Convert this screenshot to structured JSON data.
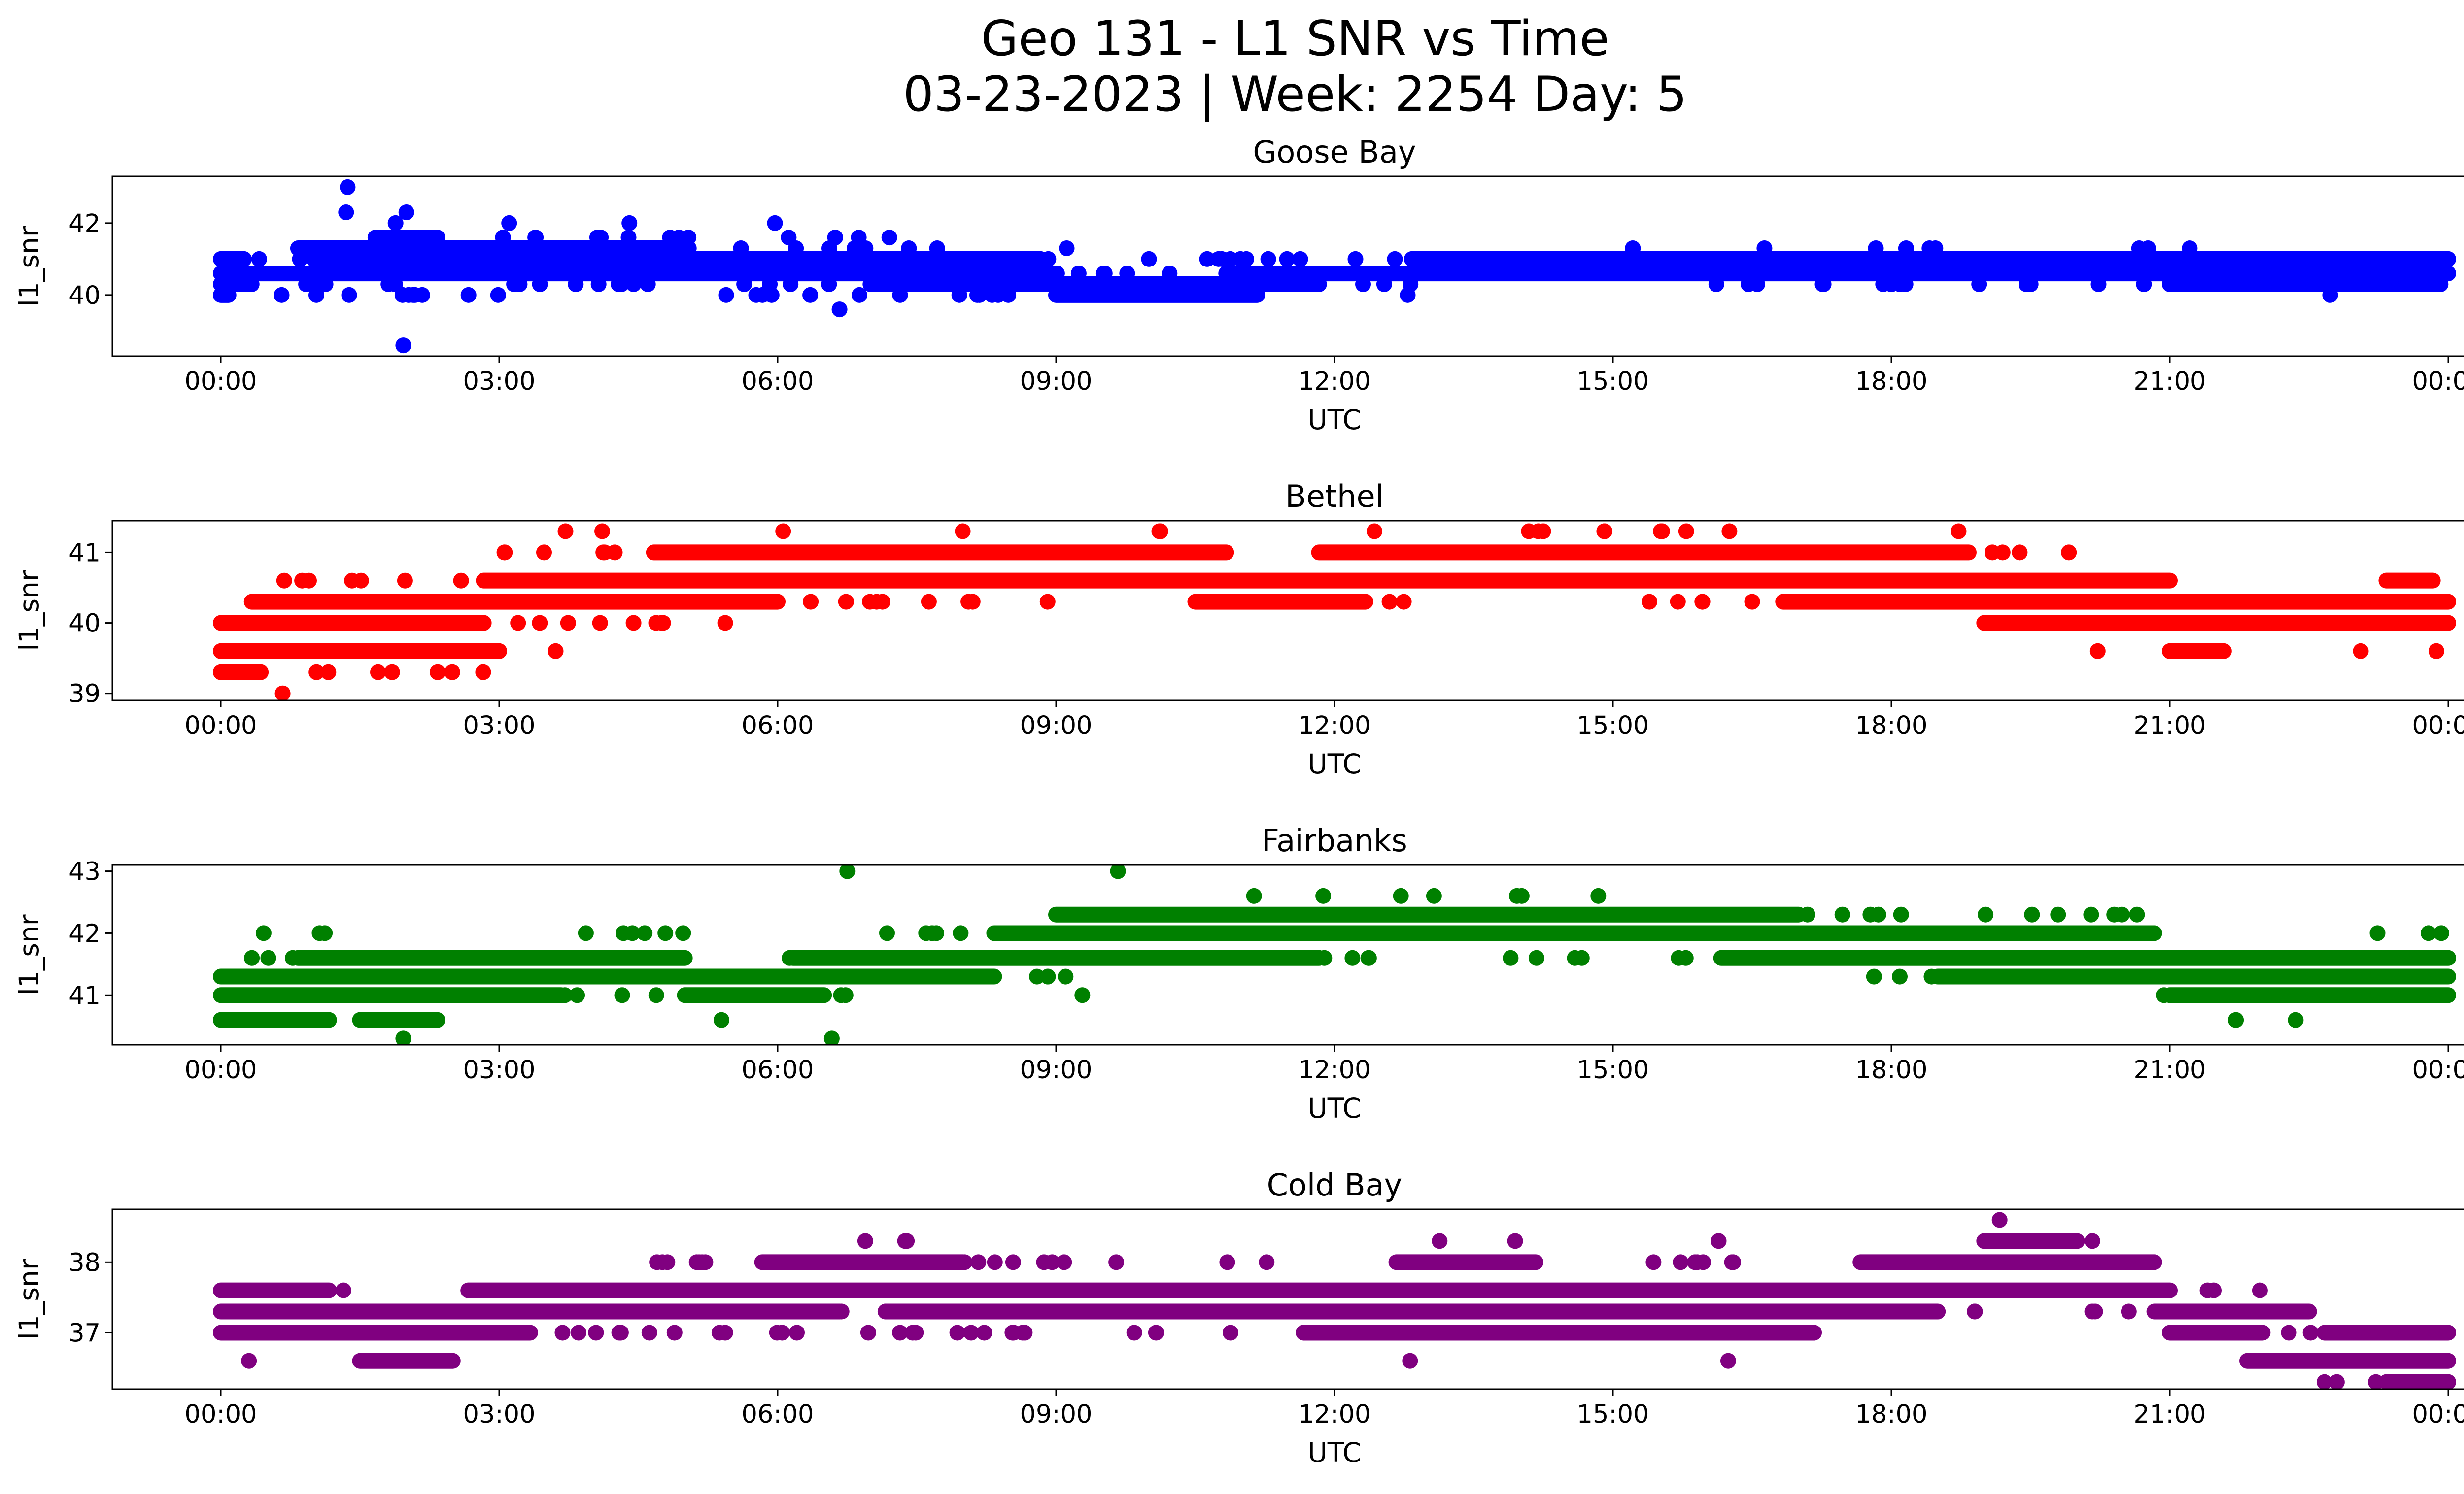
{
  "figure": {
    "title_line1": "Geo 131 - L1 SNR vs Time",
    "title_line2": "03-23-2023 | Week: 2254 Day: 5"
  },
  "chart_data": [
    {
      "type": "scatter",
      "title": "Goose Bay",
      "xlabel": "UTC",
      "ylabel": "l1_snr",
      "color": "#0000ff",
      "xlim": [
        "2023-03-22T23:24",
        "2023-03-24T00:36"
      ],
      "ylim": [
        38.3,
        43.3
      ],
      "xticks": [
        "00:00",
        "03:00",
        "06:00",
        "09:00",
        "12:00",
        "15:00",
        "18:00",
        "21:00",
        "00:00"
      ],
      "yticks": [
        40,
        42
      ],
      "levels": [
        {
          "y": 40.0,
          "segments": [
            [
              "00:00",
              "00:05"
            ],
            [
              "09:00",
              "11:10"
            ]
          ],
          "sparse": [
            [
              "00:10",
              "03:00"
            ],
            [
              "05:00",
              "09:00"
            ],
            [
              "12:40",
              "12:50"
            ],
            [
              "22:40",
              "22:50"
            ]
          ]
        },
        {
          "y": 40.3,
          "segments": [
            [
              "00:00",
              "00:20"
            ],
            [
              "07:00",
              "11:50"
            ],
            [
              "21:00",
              "23:55"
            ]
          ],
          "sparse": [
            [
              "00:30",
              "02:00"
            ],
            [
              "02:30",
              "06:40"
            ],
            [
              "12:00",
              "13:00"
            ],
            [
              "16:00",
              "21:00"
            ]
          ]
        },
        {
          "y": 40.6,
          "segments": [
            [
              "00:00",
              "09:00"
            ],
            [
              "10:50",
              "24:00"
            ]
          ],
          "sparse": [
            [
              "09:00",
              "10:50"
            ]
          ]
        },
        {
          "y": 41.0,
          "segments": [
            [
              "00:00",
              "00:15"
            ],
            [
              "01:00",
              "08:50"
            ],
            [
              "12:50",
              "24:00"
            ]
          ],
          "sparse": [
            [
              "00:15",
              "01:00"
            ],
            [
              "08:50",
              "12:50"
            ]
          ]
        },
        {
          "y": 41.3,
          "segments": [
            [
              "00:50",
              "05:00"
            ]
          ],
          "sparse": [
            [
              "05:00",
              "08:00"
            ],
            [
              "09:00",
              "09:10"
            ],
            [
              "15:10",
              "15:20"
            ],
            [
              "16:30",
              "16:40"
            ],
            [
              "17:40",
              "17:50"
            ],
            [
              "18:00",
              "18:50"
            ],
            [
              "20:20",
              "20:50"
            ],
            [
              "21:10",
              "21:15"
            ]
          ]
        },
        {
          "y": 41.6,
          "segments": [
            [
              "01:40",
              "02:20"
            ]
          ],
          "sparse": [
            [
              "03:00",
              "07:30"
            ]
          ]
        },
        {
          "y": 42.0,
          "segments": [],
          "sparse": [
            [
              "03:00",
              "03:20"
            ],
            [
              "04:10",
              "04:30"
            ],
            [
              "05:50",
              "06:00"
            ]
          ]
        }
      ],
      "points": [
        {
          "x": "01:22",
          "y": 43.0
        },
        {
          "x": "01:21",
          "y": 42.3
        },
        {
          "x": "02:00",
          "y": 42.3
        },
        {
          "x": "01:53",
          "y": 42.0
        },
        {
          "x": "01:58",
          "y": 38.6
        },
        {
          "x": "06:40",
          "y": 39.6
        },
        {
          "x": "01:23",
          "y": 40.0
        }
      ]
    },
    {
      "type": "scatter",
      "title": "Bethel",
      "xlabel": "UTC",
      "ylabel": "l1_snr",
      "color": "#ff0000",
      "xlim": [
        "2023-03-22T23:24",
        "2023-03-24T00:36"
      ],
      "ylim": [
        38.9,
        41.45
      ],
      "xticks": [
        "00:00",
        "03:00",
        "06:00",
        "09:00",
        "12:00",
        "15:00",
        "18:00",
        "21:00",
        "00:00"
      ],
      "yticks": [
        39,
        40,
        41
      ],
      "levels": [
        {
          "y": 39.3,
          "segments": [
            [
              "00:00",
              "00:25"
            ]
          ],
          "sparse": [
            [
              "00:25",
              "02:50"
            ]
          ]
        },
        {
          "y": 39.6,
          "segments": [
            [
              "00:00",
              "03:00"
            ],
            [
              "21:00",
              "21:35"
            ]
          ],
          "sparse": [
            [
              "03:30",
              "03:40"
            ],
            [
              "20:10",
              "20:15"
            ],
            [
              "22:50",
              "23:10"
            ],
            [
              "23:45",
              "24:00"
            ]
          ]
        },
        {
          "y": 40.0,
          "segments": [
            [
              "00:00",
              "02:50"
            ],
            [
              "19:00",
              "24:00"
            ]
          ],
          "sparse": [
            [
              "02:50",
              "05:40"
            ]
          ]
        },
        {
          "y": 40.3,
          "segments": [
            [
              "00:20",
              "06:00"
            ],
            [
              "10:30",
              "12:20"
            ],
            [
              "16:50",
              "24:00"
            ]
          ],
          "sparse": [
            [
              "06:00",
              "09:00"
            ],
            [
              "12:20",
              "12:50"
            ],
            [
              "15:10",
              "16:50"
            ]
          ]
        },
        {
          "y": 40.6,
          "segments": [
            [
              "02:50",
              "21:00"
            ],
            [
              "23:20",
              "23:50"
            ]
          ],
          "sparse": [
            [
              "00:40",
              "02:50"
            ]
          ]
        },
        {
          "y": 41.0,
          "segments": [
            [
              "04:40",
              "10:50"
            ],
            [
              "11:50",
              "18:50"
            ]
          ],
          "sparse": [
            [
              "02:50",
              "04:40"
            ],
            [
              "18:50",
              "20:00"
            ]
          ]
        },
        {
          "y": 41.3,
          "segments": [],
          "sparse": [
            [
              "03:40",
              "04:10"
            ],
            [
              "06:00",
              "06:10"
            ],
            [
              "07:40",
              "08:00"
            ],
            [
              "10:00",
              "10:30"
            ],
            [
              "12:20",
              "12:30"
            ],
            [
              "13:20",
              "16:20"
            ],
            [
              "18:40",
              "18:45"
            ]
          ]
        }
      ],
      "points": [
        {
          "x": "00:40",
          "y": 39.0
        }
      ]
    },
    {
      "type": "scatter",
      "title": "Fairbanks",
      "xlabel": "UTC",
      "ylabel": "l1_snr",
      "color": "#008000",
      "xlim": [
        "2023-03-22T23:24",
        "2023-03-24T00:36"
      ],
      "ylim": [
        40.2,
        43.1
      ],
      "xticks": [
        "00:00",
        "03:00",
        "06:00",
        "09:00",
        "12:00",
        "15:00",
        "18:00",
        "21:00",
        "00:00"
      ],
      "yticks": [
        41,
        42,
        43
      ],
      "levels": [
        {
          "y": 40.6,
          "segments": [
            [
              "00:00",
              "01:10"
            ],
            [
              "01:30",
              "02:20"
            ]
          ],
          "sparse": [
            [
              "05:10",
              "05:30"
            ],
            [
              "21:40",
              "21:50"
            ],
            [
              "22:20",
              "22:30"
            ]
          ]
        },
        {
          "y": 41.0,
          "segments": [
            [
              "00:00",
              "03:40"
            ],
            [
              "05:00",
              "06:30"
            ],
            [
              "21:00",
              "24:00"
            ]
          ],
          "sparse": [
            [
              "03:40",
              "05:00"
            ],
            [
              "06:30",
              "07:00"
            ],
            [
              "09:10",
              "09:20"
            ],
            [
              "20:50",
              "21:00"
            ]
          ]
        },
        {
          "y": 41.3,
          "segments": [
            [
              "00:00",
              "08:20"
            ],
            [
              "18:30",
              "24:00"
            ]
          ],
          "sparse": [
            [
              "08:20",
              "09:40"
            ],
            [
              "17:30",
              "18:30"
            ]
          ]
        },
        {
          "y": 41.6,
          "segments": [
            [
              "00:50",
              "05:00"
            ],
            [
              "06:10",
              "11:50"
            ],
            [
              "16:10",
              "24:00"
            ]
          ],
          "sparse": [
            [
              "00:00",
              "00:50"
            ],
            [
              "05:50",
              "06:10"
            ],
            [
              "11:50",
              "13:10"
            ],
            [
              "13:50",
              "15:50"
            ]
          ]
        },
        {
          "y": 42.0,
          "segments": [
            [
              "08:20",
              "20:50"
            ]
          ],
          "sparse": [
            [
              "00:10",
              "01:10"
            ],
            [
              "03:00",
              "05:00"
            ],
            [
              "06:40",
              "08:20"
            ],
            [
              "23:10",
              "24:00"
            ]
          ]
        },
        {
          "y": 42.3,
          "segments": [
            [
              "09:00",
              "17:00"
            ]
          ],
          "sparse": [
            [
              "17:00",
              "20:50"
            ]
          ]
        },
        {
          "y": 42.6,
          "segments": [],
          "sparse": [
            [
              "11:00",
              "11:10"
            ],
            [
              "11:50",
              "12:00"
            ],
            [
              "12:30",
              "13:10"
            ],
            [
              "13:30",
              "14:10"
            ],
            [
              "14:40",
              "14:55"
            ]
          ]
        }
      ],
      "points": [
        {
          "x": "06:45",
          "y": 43.0
        },
        {
          "x": "09:40",
          "y": 43.0
        },
        {
          "x": "01:58",
          "y": 40.3
        },
        {
          "x": "06:35",
          "y": 40.3
        }
      ]
    },
    {
      "type": "scatter",
      "title": "Cold Bay",
      "xlabel": "UTC",
      "ylabel": "l1_snr",
      "color": "#800080",
      "xlim": [
        "2023-03-22T23:24",
        "2023-03-24T00:36"
      ],
      "ylim": [
        36.2,
        38.75
      ],
      "xticks": [
        "00:00",
        "03:00",
        "06:00",
        "09:00",
        "12:00",
        "15:00",
        "18:00",
        "21:00",
        "00:00"
      ],
      "yticks": [
        37,
        38
      ],
      "levels": [
        {
          "y": 36.3,
          "segments": [
            [
              "23:20",
              "24:00"
            ]
          ],
          "sparse": [
            [
              "22:40",
              "23:20"
            ]
          ]
        },
        {
          "y": 36.6,
          "segments": [
            [
              "01:30",
              "02:30"
            ],
            [
              "21:50",
              "24:00"
            ]
          ],
          "sparse": [
            [
              "00:10",
              "00:20"
            ],
            [
              "12:45",
              "12:50"
            ],
            [
              "16:10",
              "16:30"
            ]
          ]
        },
        {
          "y": 37.0,
          "segments": [
            [
              "00:00",
              "03:20"
            ],
            [
              "11:40",
              "17:10"
            ],
            [
              "21:00",
              "22:00"
            ],
            [
              "22:40",
              "24:00"
            ]
          ],
          "sparse": [
            [
              "03:20",
              "11:40"
            ],
            [
              "22:00",
              "22:40"
            ]
          ]
        },
        {
          "y": 37.3,
          "segments": [
            [
              "00:00",
              "06:40"
            ],
            [
              "07:10",
              "18:30"
            ],
            [
              "20:50",
              "22:30"
            ]
          ],
          "sparse": [
            [
              "06:40",
              "07:10"
            ],
            [
              "18:30",
              "19:00"
            ],
            [
              "20:00",
              "20:50"
            ]
          ]
        },
        {
          "y": 37.6,
          "segments": [
            [
              "00:00",
              "01:10"
            ],
            [
              "02:40",
              "21:00"
            ]
          ],
          "sparse": [
            [
              "01:10",
              "01:20"
            ],
            [
              "21:00",
              "22:00"
            ]
          ]
        },
        {
          "y": 38.0,
          "segments": [
            [
              "05:50",
              "08:00"
            ],
            [
              "12:40",
              "14:10"
            ],
            [
              "17:40",
              "20:50"
            ]
          ],
          "sparse": [
            [
              "03:40",
              "05:50"
            ],
            [
              "08:00",
              "11:20"
            ],
            [
              "14:10",
              "16:20"
            ]
          ]
        },
        {
          "y": 38.3,
          "segments": [
            [
              "19:00",
              "20:00"
            ]
          ],
          "sparse": [
            [
              "06:50",
              "07:40"
            ],
            [
              "13:00",
              "13:10"
            ],
            [
              "13:55",
              "14:00"
            ],
            [
              "16:05",
              "16:10"
            ],
            [
              "20:00",
              "20:20"
            ]
          ]
        }
      ],
      "points": [
        {
          "x": "19:10",
          "y": 38.6
        },
        {
          "x": "22:40",
          "y": 36.3
        }
      ]
    }
  ]
}
